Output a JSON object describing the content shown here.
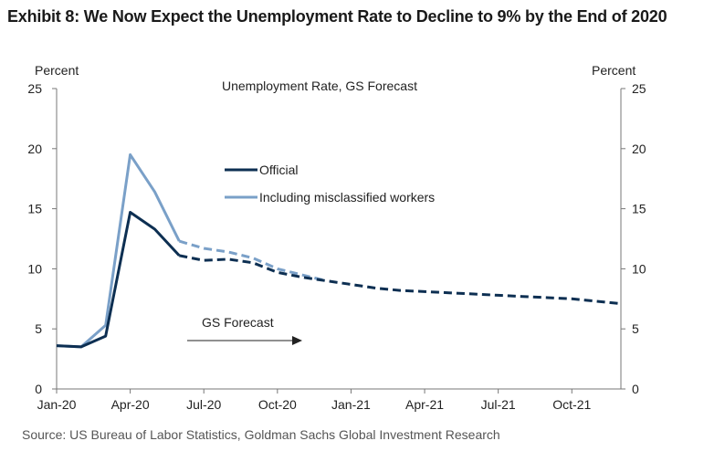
{
  "title": "Exhibit 8: We Now Expect the Unemployment Rate to Decline to 9% by the End of 2020",
  "source": "Source: US Bureau of Labor Statistics, Goldman Sachs Global Investment Research",
  "chart_data": {
    "type": "line",
    "title": "Unemployment Rate, GS Forecast",
    "ylabel_left": "Percent",
    "ylabel_right": "Percent",
    "ylim": [
      0,
      25
    ],
    "yticks": [
      0,
      5,
      10,
      15,
      20,
      25
    ],
    "x_tick_labels": [
      "Jan-20",
      "Apr-20",
      "Jul-20",
      "Oct-20",
      "Jan-21",
      "Apr-21",
      "Jul-21",
      "Oct-21"
    ],
    "x_tick_index": [
      0,
      3,
      6,
      9,
      12,
      15,
      18,
      21
    ],
    "x_max_index": 23,
    "annotation": "GS Forecast",
    "series": [
      {
        "name": "Official",
        "color": "#0d2f52",
        "actual": {
          "x": [
            0,
            1,
            2,
            3,
            4,
            5
          ],
          "values": [
            3.6,
            3.5,
            4.4,
            14.7,
            13.3,
            11.1
          ]
        },
        "forecast": {
          "x": [
            5,
            6,
            7,
            8,
            9,
            10,
            11,
            12,
            13,
            14,
            15,
            16,
            17,
            18,
            19,
            20,
            21,
            22,
            23
          ],
          "values": [
            11.1,
            10.7,
            10.8,
            10.5,
            9.7,
            9.3,
            9.0,
            8.7,
            8.4,
            8.2,
            8.1,
            8.0,
            7.9,
            7.8,
            7.7,
            7.6,
            7.5,
            7.3,
            7.1
          ]
        }
      },
      {
        "name": "Including misclassified workers",
        "color": "#7aa0c8",
        "actual": {
          "x": [
            0,
            1,
            2,
            3,
            4,
            5
          ],
          "values": [
            3.6,
            3.5,
            5.3,
            19.5,
            16.4,
            12.3
          ]
        },
        "forecast": {
          "x": [
            5,
            6,
            7,
            8,
            9,
            10,
            11
          ],
          "values": [
            12.3,
            11.7,
            11.4,
            10.9,
            10.0,
            9.5,
            9.0
          ]
        }
      }
    ]
  }
}
